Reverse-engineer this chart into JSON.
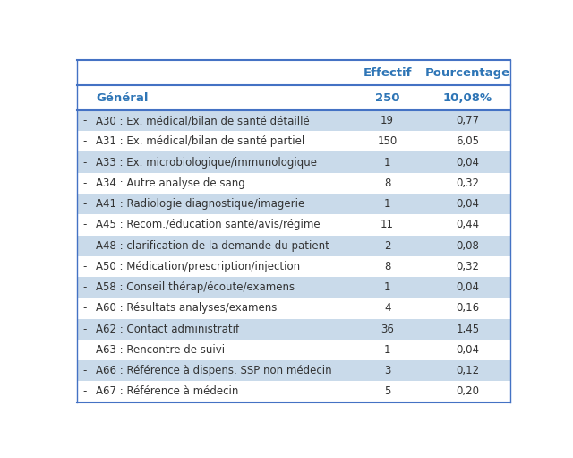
{
  "header_col1": "Effectif",
  "header_col2": "Pourcentage",
  "subheader_label": "Général",
  "subheader_col1": "250",
  "subheader_col2": "10,08%",
  "rows": [
    [
      "-",
      "A30 : Ex. médical/bilan de santé détaillé",
      "19",
      "0,77"
    ],
    [
      "-",
      "A31 : Ex. médical/bilan de santé partiel",
      "150",
      "6,05"
    ],
    [
      "-",
      "A33 : Ex. microbiologique/immunologique",
      "1",
      "0,04"
    ],
    [
      "-",
      "A34 : Autre analyse de sang",
      "8",
      "0,32"
    ],
    [
      "-",
      "A41 : Radiologie diagnostique/imagerie",
      "1",
      "0,04"
    ],
    [
      "-",
      "A45 : Recom./éducation santé/avis/régime",
      "11",
      "0,44"
    ],
    [
      "-",
      "A48 : clarification de la demande du patient",
      "2",
      "0,08"
    ],
    [
      "-",
      "A50 : Médication/prescription/injection",
      "8",
      "0,32"
    ],
    [
      "-",
      "A58 : Conseil thérap/écoute/examens",
      "1",
      "0,04"
    ],
    [
      "-",
      "A60 : Résultats analyses/examens",
      "4",
      "0,16"
    ],
    [
      "-",
      "A62 : Contact administratif",
      "36",
      "1,45"
    ],
    [
      "-",
      "A63 : Rencontre de suivi",
      "1",
      "0,04"
    ],
    [
      "-",
      "A66 : Référence à dispens. SSP non médecin",
      "3",
      "0,12"
    ],
    [
      "-",
      "A67 : Référence à médecin",
      "5",
      "0,20"
    ]
  ],
  "blue_color": "#2E75B6",
  "light_blue_bg": "#C9DAEA",
  "white_bg": "#FFFFFF",
  "line_color": "#4472C4",
  "header_fontsize": 9.5,
  "row_fontsize": 8.5
}
